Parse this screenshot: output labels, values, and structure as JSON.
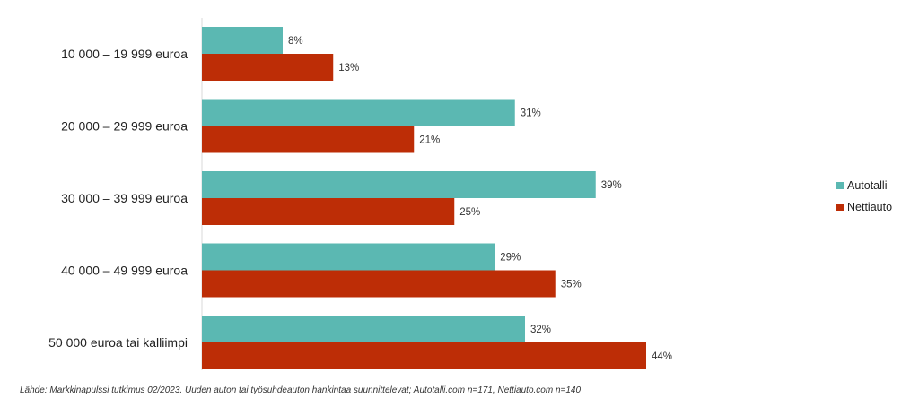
{
  "chart_data": {
    "type": "bar",
    "orientation": "horizontal",
    "categories": [
      "10 000 – 19 999 euroa",
      "20 000 – 29 999 euroa",
      "30 000 – 39 999 euroa",
      "40 000 – 49 999 euroa",
      "50 000 euroa tai kalliimpi"
    ],
    "series": [
      {
        "name": "Autotalli",
        "color": "#5bb8b2",
        "values": [
          8,
          31,
          39,
          29,
          32
        ]
      },
      {
        "name": "Nettiauto",
        "color": "#bd2d06",
        "values": [
          13,
          21,
          25,
          35,
          44
        ]
      }
    ],
    "value_format": "{v}%",
    "xlim": [
      0,
      50
    ],
    "grid": false,
    "legend_position": "right"
  },
  "source_note": "Lähde: Markkinapulssi tutkimus 02/2023. Uuden auton tai työsuhdeauton hankintaa suunnittelevat; Autotalli.com n=171, Nettiauto.com n=140"
}
